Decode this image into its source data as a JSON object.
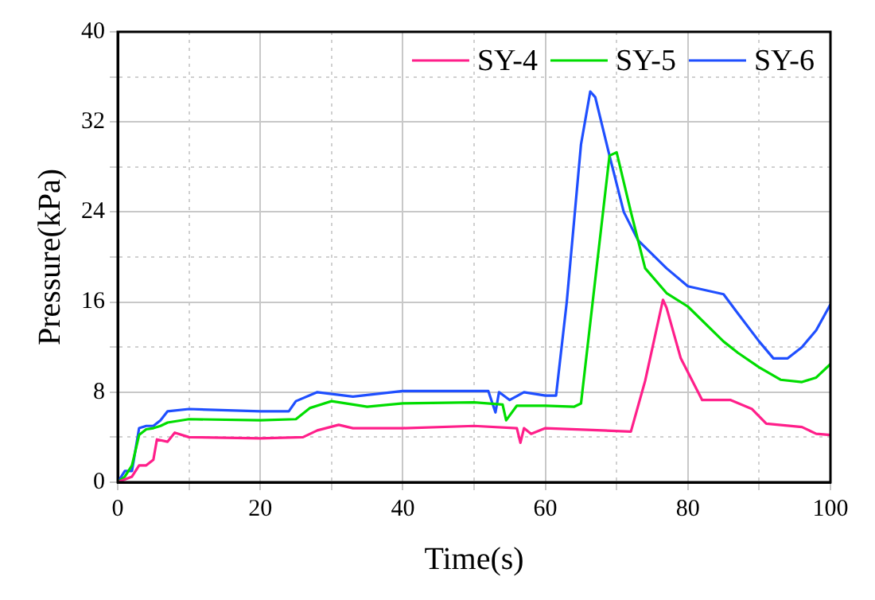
{
  "chart_data": {
    "type": "line",
    "xlabel": "Time(s)",
    "ylabel": "Pressure(kPa)",
    "xlim": [
      0,
      100
    ],
    "ylim": [
      0,
      40
    ],
    "xticks": [
      0,
      {
        "value": 10,
        "label": null
      },
      20,
      {
        "value": 30,
        "label": null
      },
      40,
      {
        "value": 50,
        "label": null
      },
      60,
      {
        "value": 70,
        "label": null
      },
      80,
      {
        "value": 90,
        "label": null
      },
      100
    ],
    "yticks": [
      0,
      {
        "value": 4,
        "label": null
      },
      8,
      {
        "value": 12,
        "label": null
      },
      16,
      {
        "value": 20,
        "label": null
      },
      24,
      {
        "value": 28,
        "label": null
      },
      32,
      {
        "value": 36,
        "label": null
      },
      40
    ],
    "grid": true,
    "legend": "top right",
    "marker": "none",
    "line_style": "solid",
    "series": [
      {
        "name": "SY-4",
        "color": "#ff1f8a",
        "x": [
          0,
          2,
          3,
          4,
          5,
          5.5,
          7,
          8,
          10,
          20,
          26,
          28,
          31,
          33,
          40,
          50,
          56,
          56.5,
          57,
          58,
          60,
          72,
          74,
          76.5,
          77,
          79,
          82,
          86,
          89,
          91,
          96,
          98,
          100
        ],
        "values": [
          0,
          0.5,
          1.5,
          1.5,
          2,
          3.8,
          3.6,
          4.4,
          4,
          3.9,
          4,
          4.6,
          5.1,
          4.8,
          4.8,
          5,
          4.8,
          3.5,
          4.8,
          4.3,
          4.8,
          4.5,
          9,
          16.2,
          15.5,
          11,
          7.3,
          7.3,
          6.5,
          5.2,
          4.9,
          4.3,
          4.2
        ]
      },
      {
        "name": "SY-5",
        "color": "#00dd00",
        "x": [
          0,
          1,
          2,
          3,
          4,
          5,
          6,
          7,
          10,
          20,
          25,
          27,
          30,
          35,
          40,
          50,
          54,
          54.5,
          56,
          60,
          64,
          65,
          67,
          69,
          70,
          72,
          74,
          77,
          80,
          85,
          87,
          90,
          93,
          96,
          98,
          100
        ],
        "values": [
          0,
          0.5,
          1.5,
          4.2,
          4.7,
          4.8,
          5,
          5.3,
          5.6,
          5.5,
          5.6,
          6.6,
          7.2,
          6.7,
          7,
          7.1,
          6.9,
          5.5,
          6.8,
          6.8,
          6.7,
          7,
          18,
          29,
          29.3,
          24,
          19,
          16.8,
          15.6,
          12.5,
          11.5,
          10.2,
          9.1,
          8.9,
          9.3,
          10.5
        ]
      },
      {
        "name": "SY-6",
        "color": "#1f4fff",
        "x": [
          0,
          1,
          2,
          3,
          4,
          5,
          6,
          7,
          10,
          20,
          24,
          25,
          28,
          33,
          40,
          52,
          53,
          53.5,
          55,
          57,
          60,
          61.5,
          63,
          65,
          66.3,
          67,
          69,
          71,
          73,
          77,
          80,
          85,
          87,
          90,
          92,
          94,
          96,
          98,
          100
        ],
        "values": [
          0,
          1,
          1,
          4.8,
          5,
          5,
          5.5,
          6.3,
          6.5,
          6.3,
          6.3,
          7.2,
          8,
          7.6,
          8.1,
          8.1,
          6.2,
          8,
          7.3,
          8,
          7.7,
          7.7,
          16,
          30,
          34.7,
          34.2,
          29,
          24,
          21.5,
          19,
          17.4,
          16.7,
          15,
          12.5,
          11,
          11,
          12,
          13.5,
          15.8
        ]
      }
    ]
  }
}
